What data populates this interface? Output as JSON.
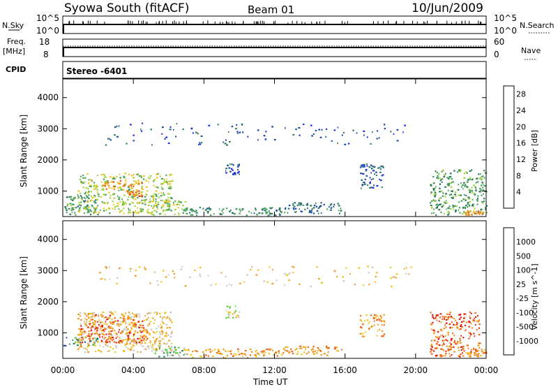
{
  "header": {
    "station": "Syowa South (fitACF)",
    "beam": "Beam 01",
    "date": "10/Jun/2009"
  },
  "strips": {
    "nsky_label": "N.Sky",
    "nsky_ticks": [
      "10^5",
      "10^0"
    ],
    "nsearch_label": "N.Search",
    "nsearch_ticks": [
      "10^5",
      "10^0"
    ],
    "freq_label": "Freq.",
    "freq_unit": "[MHz]",
    "freq_ticks": [
      "18",
      "8"
    ],
    "nave_label": "Nave",
    "nave_ticks": [
      "60",
      "0"
    ],
    "cpid_label": "CPID",
    "cpid_value": "Stereo -6401"
  },
  "x_axis": {
    "label": "Time UT",
    "ticks": [
      "00:00",
      "04:00",
      "08:00",
      "12:00",
      "16:00",
      "20:00",
      "00:00"
    ]
  },
  "colors": {
    "power_scale": [
      "#1e2cf0",
      "#1f4fa3",
      "#2d7a5a",
      "#4aa35a",
      "#9ed23a",
      "#f2c21b",
      "#f08a14",
      "#e85a12",
      "#e01b10"
    ],
    "velocity_scale": [
      "#e01b10",
      "#f06414",
      "#f09a1b",
      "#f2c21b",
      "#c8c8c8",
      "#5fd23a",
      "#2d8a5a",
      "#1f4fa3",
      "#1e2cf0"
    ]
  },
  "chart_data": [
    {
      "type": "scatter",
      "title": "Power",
      "xlabel": "Time UT",
      "ylabel": "Slant Range [km]",
      "xlim": [
        0,
        24
      ],
      "ylim": [
        180,
        4600
      ],
      "yticks": [
        "1000",
        "2000",
        "3000",
        "4000"
      ],
      "colorbar": {
        "label": "Power [dB]",
        "ticks": [
          "4",
          "8",
          "12",
          "16",
          "20",
          "24",
          "28"
        ],
        "range": [
          0,
          30
        ]
      },
      "regions": [
        {
          "t0": 0.0,
          "t1": 2.0,
          "r0": 250,
          "r1": 900,
          "value": 10
        },
        {
          "t0": 0.8,
          "t1": 6.2,
          "r0": 300,
          "r1": 1600,
          "value": 15
        },
        {
          "t0": 2.2,
          "t1": 4.5,
          "r0": 1050,
          "r1": 1350,
          "value": 22
        },
        {
          "t0": 3.5,
          "t1": 4.5,
          "r0": 850,
          "r1": 1050,
          "value": 24
        },
        {
          "t0": 5.0,
          "t1": 7.0,
          "r0": 250,
          "r1": 700,
          "value": 14
        },
        {
          "t0": 6.8,
          "t1": 12.5,
          "r0": 220,
          "r1": 500,
          "value": 9
        },
        {
          "t0": 9.2,
          "t1": 10.0,
          "r0": 1500,
          "r1": 1900,
          "value": 5
        },
        {
          "t0": 12.5,
          "t1": 15.8,
          "r0": 300,
          "r1": 650,
          "value": 7
        },
        {
          "t0": 16.8,
          "t1": 18.2,
          "r0": 1100,
          "r1": 1900,
          "value": 6
        },
        {
          "t0": 20.8,
          "t1": 24.0,
          "r0": 250,
          "r1": 1700,
          "value": 11
        },
        {
          "t0": 22.8,
          "t1": 23.8,
          "r0": 250,
          "r1": 400,
          "value": 22
        },
        {
          "t0": 2.0,
          "t1": 20.0,
          "r0": 2500,
          "r1": 3200,
          "value": 5
        }
      ]
    },
    {
      "type": "scatter",
      "title": "Velocity",
      "xlabel": "Time UT",
      "ylabel": "Slant Range [km]",
      "xlim": [
        0,
        24
      ],
      "ylim": [
        180,
        4600
      ],
      "yticks": [
        "1000",
        "2000",
        "3000",
        "4000"
      ],
      "colorbar": {
        "label": "Velocity [m s^-1]",
        "ticks": [
          "-1000",
          "-500",
          "-100",
          "-25",
          "25",
          "100",
          "500",
          "1000"
        ]
      },
      "regions": [
        {
          "t0": 0.0,
          "t1": 2.0,
          "r0": 600,
          "r1": 900,
          "value": 6
        },
        {
          "t0": 0.8,
          "t1": 6.2,
          "r0": 400,
          "r1": 1700,
          "value": 3
        },
        {
          "t0": 1.0,
          "t1": 4.8,
          "r0": 700,
          "r1": 1600,
          "value": 1
        },
        {
          "t0": 5.0,
          "t1": 7.0,
          "r0": 250,
          "r1": 600,
          "value": 5
        },
        {
          "t0": 6.8,
          "t1": 12.5,
          "r0": 220,
          "r1": 500,
          "value": 2
        },
        {
          "t0": 9.2,
          "t1": 10.0,
          "r0": 1500,
          "r1": 1900,
          "value": 4
        },
        {
          "t0": 12.5,
          "t1": 15.8,
          "r0": 300,
          "r1": 600,
          "value": 2
        },
        {
          "t0": 16.8,
          "t1": 18.2,
          "r0": 900,
          "r1": 1600,
          "value": 2
        },
        {
          "t0": 20.8,
          "t1": 23.6,
          "r0": 250,
          "r1": 1700,
          "value": 1
        },
        {
          "t0": 22.6,
          "t1": 24.0,
          "r0": 250,
          "r1": 500,
          "value": 2
        },
        {
          "t0": 2.0,
          "t1": 20.0,
          "r0": 2500,
          "r1": 3200,
          "value": 3
        }
      ]
    }
  ]
}
